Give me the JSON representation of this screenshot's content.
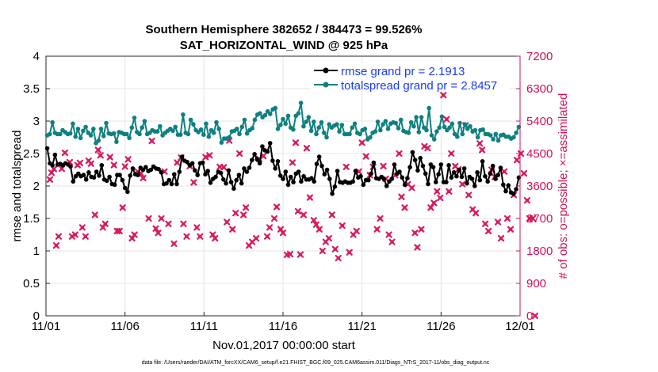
{
  "chart_data": {
    "type": "line",
    "title": "Southern Hemisphere 382652 / 384473 = 99.526%",
    "subtitle": "SAT_HORIZONTAL_WIND @ 925 hPa",
    "xlabel": "Nov.01,2017 00:00:00 start",
    "ylabel_left": "rmse and totalspread",
    "ylabel_right": "# of obs: o=possible; ×=assimilated",
    "footnote": "data file: /Users/raeder/DAI/ATM_forcXX/CAM6_setup/f.e21.FHIST_BGC.f09_025.CAM6assim.011/Diags_NTrS_2017-11/obs_diag_output.nc",
    "x_ticks": [
      "11/01",
      "11/06",
      "11/11",
      "11/16",
      "11/21",
      "11/26",
      "12/01"
    ],
    "x_tick_days": [
      0,
      5,
      10,
      15,
      20,
      25,
      30
    ],
    "xlim": [
      0,
      30
    ],
    "y_left_ticks": [
      "0",
      "0.5",
      "1",
      "1.5",
      "2",
      "2.5",
      "3",
      "3.5",
      "4"
    ],
    "ylim_left": [
      0,
      4
    ],
    "y_right_ticks": [
      "0",
      "900",
      "1800",
      "2700",
      "3600",
      "4500",
      "5400",
      "6300",
      "7200"
    ],
    "ylim_right": [
      0,
      7200
    ],
    "legend_location": "top-right",
    "colors": {
      "rmse": "#000000",
      "spread": "#0e8080",
      "obs": "#d81b60",
      "right_axis": "#d01058",
      "legend_text": "#1a3cf0"
    },
    "series": [
      {
        "name": "rmse grand pr = 2.1913",
        "axis": "left",
        "color": "#000000",
        "values": [
          2.58,
          2.35,
          2.32,
          2.48,
          2.33,
          2.34,
          2.32,
          2.35,
          2.33,
          2.3,
          2.07,
          2.15,
          2.19,
          2.15,
          2.17,
          2.1,
          2.21,
          2.14,
          2.13,
          2.22,
          2.16,
          2.32,
          2.1,
          2.08,
          2.14,
          2.03,
          2.02,
          2.17,
          2.17,
          2.09,
          1.97,
          1.91,
          2.16,
          2.27,
          2.18,
          2.17,
          2.28,
          2.25,
          2.29,
          2.23,
          2.25,
          2.3,
          2.27,
          2.26,
          2.21,
          2.03,
          2.04,
          2.09,
          2.03,
          2.18,
          2.03,
          2.22,
          2.45,
          2.39,
          2.37,
          2.32,
          2.35,
          2.24,
          2.17,
          2.35,
          2.36,
          2.18,
          2.23,
          2.05,
          2.11,
          2.14,
          2.22,
          2.2,
          2.1,
          2.04,
          2.24,
          2.06,
          1.96,
          2.09,
          2.17,
          2.04,
          2.27,
          2.22,
          2.28,
          2.4,
          2.49,
          2.41,
          2.35,
          2.61,
          2.55,
          2.53,
          2.66,
          2.39,
          2.27,
          2.38,
          2.16,
          2.11,
          2.22,
          2.02,
          2.14,
          2.06,
          2.19,
          2.22,
          2.07,
          2.15,
          2.1,
          2.1,
          2.12,
          2.07,
          2.34,
          2.45,
          2.31,
          2.18,
          2.25,
          2.11,
          1.88,
          1.99,
          2.23,
          2.06,
          2.05,
          2.07,
          2.05,
          2.05,
          2.07,
          2.23,
          2.13,
          2.15,
          2.02,
          2.09,
          2.09,
          2.19,
          2.36,
          2.12,
          2.11,
          2.14,
          2.11,
          2.0,
          2.07,
          2.11,
          2.33,
          2.19,
          2.22,
          2.13,
          2.02,
          2.12,
          2.29,
          2.52,
          2.4,
          2.24,
          2.43,
          2.31,
          2.19,
          2.03,
          2.33,
          2.29,
          2.06,
          2.18,
          2.33,
          2.06,
          2.06,
          2.32,
          2.13,
          2.21,
          2.15,
          2.25,
          2.14,
          2.27,
          2.04,
          2.14,
          2.11,
          2.0,
          2.21,
          2.09,
          2.38,
          2.15,
          2.07,
          2.19,
          2.31,
          2.11,
          2.17,
          2.28,
          2.02,
          1.92,
          2.01,
          1.9,
          1.88,
          1.95,
          2.13
        ]
      },
      {
        "name": "totalspread grand pr = 2.8457",
        "axis": "left",
        "color": "#0e8080",
        "values": [
          2.78,
          2.8,
          2.98,
          2.82,
          2.8,
          2.8,
          2.86,
          2.83,
          2.8,
          2.81,
          2.96,
          2.76,
          2.88,
          2.74,
          2.85,
          2.91,
          2.82,
          2.78,
          2.88,
          2.66,
          2.7,
          2.88,
          2.77,
          2.97,
          2.81,
          2.8,
          2.81,
          2.68,
          2.83,
          2.82,
          2.8,
          2.8,
          2.74,
          2.9,
          3.05,
          2.83,
          2.8,
          2.9,
          3.0,
          2.8,
          2.82,
          2.86,
          2.84,
          2.84,
          2.92,
          2.78,
          2.82,
          2.85,
          2.88,
          2.85,
          2.91,
          2.79,
          2.79,
          3.1,
          2.82,
          2.8,
          3.02,
          2.95,
          2.86,
          2.83,
          2.87,
          2.79,
          2.96,
          2.76,
          2.86,
          2.82,
          2.98,
          2.88,
          2.67,
          2.73,
          2.73,
          2.75,
          2.84,
          2.85,
          2.88,
          2.8,
          2.91,
          3.02,
          2.81,
          2.86,
          2.89,
          3.02,
          3.1,
          3.12,
          3.06,
          3.09,
          3.15,
          3.11,
          3.18,
          3.2,
          2.88,
          2.94,
          3.03,
          2.96,
          3.08,
          2.9,
          2.87,
          3.08,
          3.12,
          3.28,
          2.92,
          2.99,
          3.06,
          2.85,
          2.99,
          2.8,
          2.9,
          2.98,
          2.82,
          2.75,
          2.95,
          2.9,
          2.93,
          2.95,
          2.84,
          2.94,
          2.8,
          2.8,
          2.8,
          2.9,
          2.96,
          2.82,
          2.8,
          2.86,
          2.88,
          2.72,
          2.75,
          2.82,
          2.84,
          2.99,
          2.86,
          2.95,
          3.0,
          2.88,
          2.96,
          2.98,
          2.97,
          2.89,
          3.02,
          2.85,
          2.83,
          2.82,
          2.98,
          2.92,
          3.06,
          2.83,
          3.06,
          2.9,
          2.86,
          3.2,
          2.78,
          2.72,
          2.84,
          2.9,
          3.07,
          2.91,
          2.86,
          2.9,
          2.96,
          2.8,
          2.76,
          2.97,
          2.8,
          2.95,
          2.88,
          2.92,
          2.84,
          2.86,
          2.75,
          2.86,
          2.87,
          2.8,
          2.8,
          2.78,
          2.72,
          2.8,
          2.7,
          2.78,
          2.79,
          2.76,
          2.76,
          2.73,
          2.75,
          2.82,
          2.91
        ]
      },
      {
        "name": "# of obs assimilated",
        "axis": "right",
        "color": "#d81b60",
        "points": [
          [
            0.25,
            3780
          ],
          [
            0.35,
            3970
          ],
          [
            0.5,
            4070
          ],
          [
            0.65,
            1950
          ],
          [
            0.8,
            2200
          ],
          [
            1.0,
            4080
          ],
          [
            1.2,
            4520
          ],
          [
            1.5,
            4260
          ],
          [
            1.65,
            2200
          ],
          [
            1.85,
            2250
          ],
          [
            2.0,
            4180
          ],
          [
            2.15,
            4240
          ],
          [
            2.3,
            2450
          ],
          [
            2.5,
            2200
          ],
          [
            2.7,
            4300
          ],
          [
            2.85,
            4220
          ],
          [
            3.1,
            2800
          ],
          [
            3.3,
            4600
          ],
          [
            3.45,
            4450
          ],
          [
            3.6,
            2450
          ],
          [
            3.75,
            2550
          ],
          [
            4.05,
            4400
          ],
          [
            4.3,
            4180
          ],
          [
            4.5,
            2350
          ],
          [
            4.65,
            2350
          ],
          [
            4.85,
            3000
          ],
          [
            5.0,
            4140
          ],
          [
            5.2,
            4340
          ],
          [
            5.45,
            2150
          ],
          [
            5.6,
            2250
          ],
          [
            5.8,
            4000
          ],
          [
            6.0,
            3950
          ],
          [
            6.15,
            3820
          ],
          [
            6.5,
            2700
          ],
          [
            6.7,
            4850
          ],
          [
            6.95,
            2420
          ],
          [
            7.1,
            2300
          ],
          [
            7.3,
            2700
          ],
          [
            7.5,
            4000
          ],
          [
            7.75,
            2550
          ],
          [
            8.1,
            2000
          ],
          [
            8.3,
            4250
          ],
          [
            8.55,
            4390
          ],
          [
            8.7,
            2550
          ],
          [
            8.9,
            2200
          ],
          [
            9.1,
            4150
          ],
          [
            9.35,
            3700
          ],
          [
            9.55,
            2450
          ],
          [
            9.75,
            2200
          ],
          [
            10.1,
            4400
          ],
          [
            10.35,
            4450
          ],
          [
            10.55,
            2250
          ],
          [
            10.7,
            2150
          ],
          [
            11.0,
            4130
          ],
          [
            11.25,
            4120
          ],
          [
            11.45,
            2600
          ],
          [
            11.6,
            4860
          ],
          [
            11.8,
            2400
          ],
          [
            12.0,
            2850
          ],
          [
            12.25,
            4500
          ],
          [
            12.5,
            2800
          ],
          [
            12.65,
            3000
          ],
          [
            12.85,
            1950
          ],
          [
            13.05,
            2050
          ],
          [
            13.3,
            2150
          ],
          [
            13.5,
            4350
          ],
          [
            13.75,
            4430
          ],
          [
            14.0,
            2200
          ],
          [
            14.15,
            2450
          ],
          [
            14.45,
            2700
          ],
          [
            14.6,
            3020
          ],
          [
            14.85,
            2400
          ],
          [
            15.0,
            2300
          ],
          [
            15.25,
            1690
          ],
          [
            15.45,
            1710
          ],
          [
            15.6,
            4250
          ],
          [
            15.8,
            4800
          ],
          [
            15.95,
            2900
          ],
          [
            16.1,
            1700
          ],
          [
            16.3,
            2800
          ],
          [
            16.5,
            4650
          ],
          [
            16.7,
            3280
          ],
          [
            16.95,
            2650
          ],
          [
            17.1,
            2530
          ],
          [
            17.3,
            2400
          ],
          [
            17.5,
            1800
          ],
          [
            17.7,
            2050
          ],
          [
            17.9,
            2150
          ],
          [
            18.1,
            2800
          ],
          [
            18.3,
            1850
          ],
          [
            18.5,
            1600
          ],
          [
            18.75,
            2500
          ],
          [
            19.0,
            4130
          ],
          [
            19.2,
            1760
          ],
          [
            19.45,
            2250
          ],
          [
            19.65,
            2350
          ],
          [
            19.8,
            4000
          ],
          [
            20.0,
            4800
          ],
          [
            20.25,
            4420
          ],
          [
            20.5,
            3900
          ],
          [
            20.7,
            4130
          ],
          [
            20.95,
            2400
          ],
          [
            21.15,
            2700
          ],
          [
            21.35,
            4150
          ],
          [
            21.5,
            3800
          ],
          [
            21.7,
            2250
          ],
          [
            21.9,
            2050
          ],
          [
            22.1,
            3900
          ],
          [
            22.35,
            4500
          ],
          [
            22.5,
            3300
          ],
          [
            22.7,
            3000
          ],
          [
            22.9,
            3650
          ],
          [
            23.15,
            3550
          ],
          [
            23.35,
            2300
          ],
          [
            23.5,
            1900
          ],
          [
            23.75,
            2400
          ],
          [
            23.95,
            4700
          ],
          [
            24.15,
            4650
          ],
          [
            24.35,
            3000
          ],
          [
            24.55,
            3130
          ],
          [
            24.75,
            3450
          ],
          [
            24.95,
            3270
          ],
          [
            25.15,
            6120
          ],
          [
            25.35,
            5450
          ],
          [
            25.5,
            3450
          ],
          [
            25.65,
            4500
          ],
          [
            25.9,
            4150
          ],
          [
            26.1,
            4060
          ],
          [
            26.35,
            3650
          ],
          [
            26.55,
            5280
          ],
          [
            26.75,
            3350
          ],
          [
            27.0,
            2950
          ],
          [
            27.2,
            2850
          ],
          [
            27.45,
            4780
          ],
          [
            27.6,
            4600
          ],
          [
            27.8,
            2550
          ],
          [
            28.0,
            2350
          ],
          [
            28.2,
            4050
          ],
          [
            28.4,
            3850
          ],
          [
            28.6,
            2600
          ],
          [
            28.8,
            2150
          ],
          [
            29.0,
            4000
          ],
          [
            29.2,
            2700
          ],
          [
            29.4,
            2400
          ],
          [
            29.6,
            3350
          ],
          [
            29.8,
            4320
          ],
          [
            30.05,
            4500
          ],
          [
            30.25,
            3950
          ],
          [
            30.45,
            3200
          ],
          [
            30.6,
            2700
          ],
          [
            30.8,
            2700
          ],
          [
            30.95,
            0
          ]
        ]
      }
    ]
  }
}
